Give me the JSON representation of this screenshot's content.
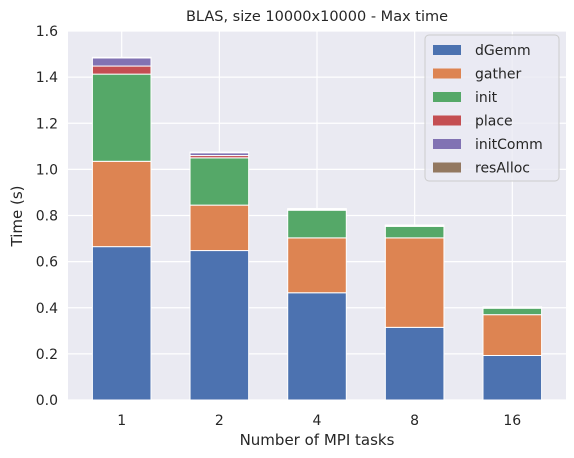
{
  "chart_data": {
    "type": "bar",
    "stacked": true,
    "title": "BLAS, size 10000x10000 - Max time",
    "xlabel": "Number of MPI tasks",
    "ylabel": "Time (s)",
    "categories": [
      "1",
      "2",
      "4",
      "8",
      "16"
    ],
    "ylim": [
      0,
      1.6
    ],
    "yticks": [
      "0.0",
      "0.2",
      "0.4",
      "0.6",
      "0.8",
      "1.0",
      "1.2",
      "1.4",
      "1.6"
    ],
    "grid": true,
    "legend_position": "top-right",
    "series": [
      {
        "name": "dGemm",
        "color": "#4c72b0",
        "values": [
          0.665,
          0.648,
          0.465,
          0.315,
          0.193
        ]
      },
      {
        "name": "gather",
        "color": "#dd8452",
        "values": [
          0.37,
          0.197,
          0.238,
          0.388,
          0.177
        ]
      },
      {
        "name": "init",
        "color": "#55a868",
        "values": [
          0.378,
          0.205,
          0.12,
          0.05,
          0.028
        ]
      },
      {
        "name": "place",
        "color": "#c44e52",
        "values": [
          0.035,
          0.01,
          0.003,
          0.002,
          0.002
        ]
      },
      {
        "name": "initComm",
        "color": "#8172b3",
        "values": [
          0.035,
          0.012,
          0.002,
          0.002,
          0.002
        ]
      },
      {
        "name": "resAlloc",
        "color": "#937860",
        "values": [
          0.003,
          0.003,
          0.002,
          0.002,
          0.002
        ]
      }
    ]
  }
}
